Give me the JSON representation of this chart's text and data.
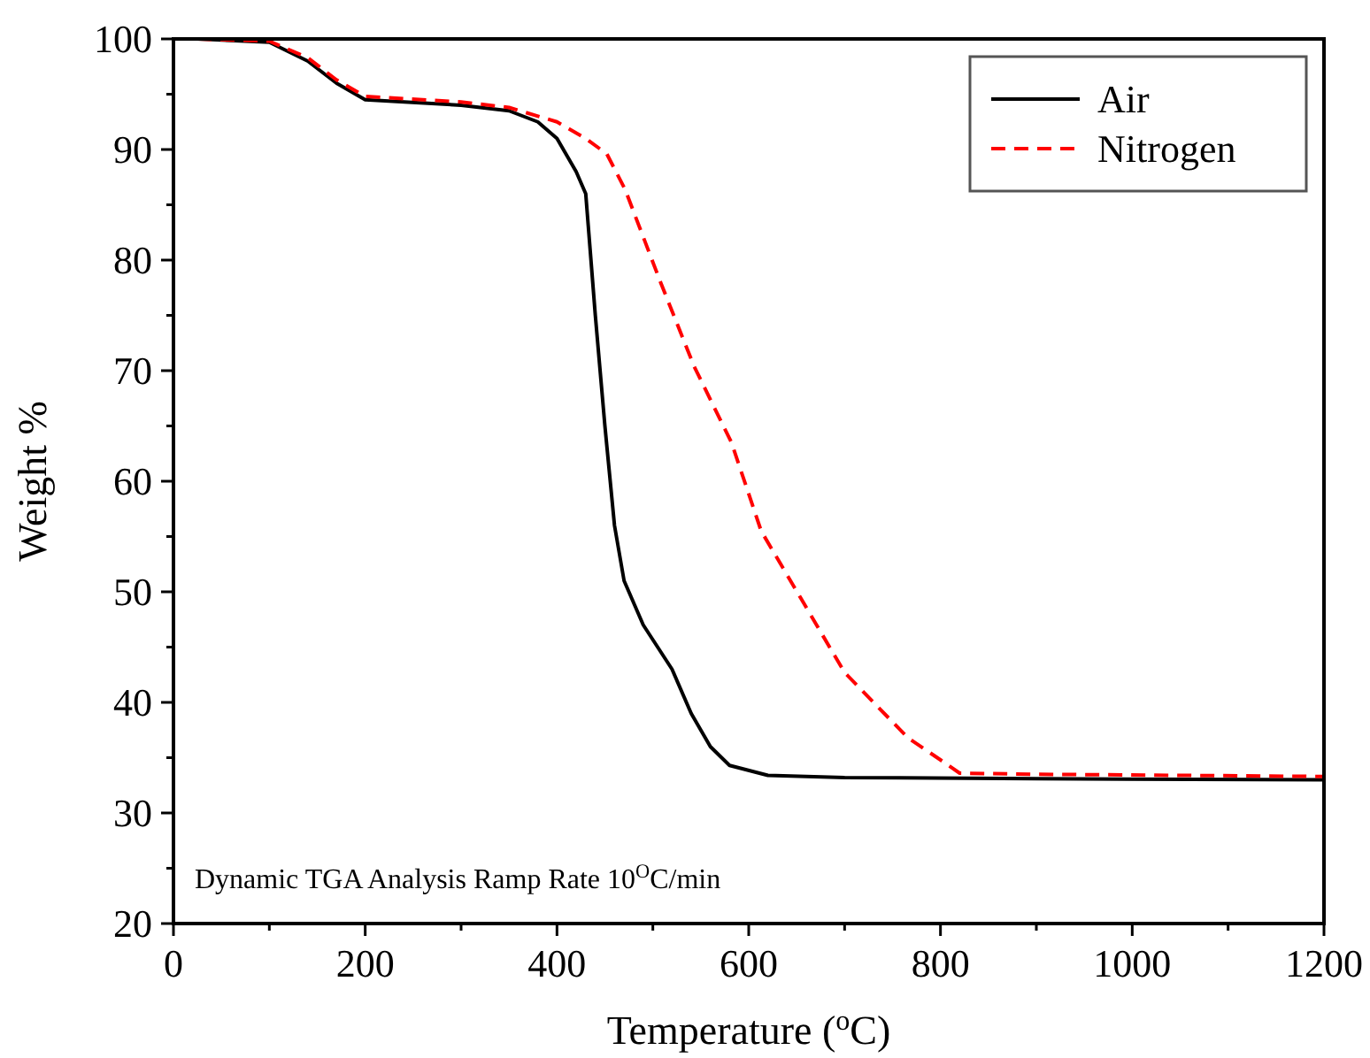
{
  "chart_data": {
    "type": "line",
    "xlabel": "Temperature ($^{o}$C)",
    "ylabel": "Weight %",
    "xlim": [
      0,
      1200
    ],
    "ylim": [
      20,
      100
    ],
    "xticks": [
      0,
      {
        "value": 100,
        "label": null
      },
      200,
      {
        "value": 300,
        "label": null
      },
      400,
      {
        "value": 500,
        "label": null
      },
      600,
      {
        "value": 700,
        "label": null
      },
      800,
      {
        "value": 900,
        "label": null
      },
      1000,
      {
        "value": 1100,
        "label": null
      },
      1200
    ],
    "yticks": [
      20,
      {
        "value": 25,
        "label": null
      },
      30,
      {
        "value": 35,
        "label": null
      },
      40,
      {
        "value": 45,
        "label": null
      },
      50,
      {
        "value": 55,
        "label": null
      },
      60,
      {
        "value": 65,
        "label": null
      },
      70,
      {
        "value": 75,
        "label": null
      },
      80,
      {
        "value": 85,
        "label": null
      },
      90,
      {
        "value": 95,
        "label": null
      },
      100
    ],
    "legend": "top right",
    "grid": false,
    "annotations": [
      "Dynamic TGA Analysis Ramp Rate 10$^{O}$C/min"
    ],
    "series": [
      {
        "name": "Air",
        "color": "#000000",
        "line_style": "solid",
        "x": [
          25,
          100,
          140,
          170,
          200,
          300,
          350,
          380,
          400,
          420,
          430,
          440,
          450,
          460,
          470,
          490,
          520,
          540,
          560,
          580,
          620,
          700,
          900,
          1200
        ],
        "values": [
          100,
          99.7,
          98,
          96,
          94.5,
          94,
          93.5,
          92.5,
          91,
          88,
          86,
          75,
          65,
          56,
          51,
          47,
          43,
          39,
          36,
          34.3,
          33.4,
          33.2,
          33.1,
          33
        ]
      },
      {
        "name": "Nitrogen",
        "color": "#ff0000",
        "line_style": "dashed",
        "x": [
          25,
          100,
          140,
          170,
          200,
          300,
          350,
          400,
          430,
          452,
          471,
          508,
          543,
          582,
          613,
          700,
          766,
          800,
          820,
          900,
          1200
        ],
        "values": [
          100,
          99.8,
          98.3,
          96.3,
          94.8,
          94.3,
          93.8,
          92.5,
          91,
          89.6,
          86.4,
          78,
          70.4,
          63.5,
          55.5,
          42.7,
          36.8,
          34.8,
          33.6,
          33.5,
          33.3
        ]
      }
    ]
  }
}
